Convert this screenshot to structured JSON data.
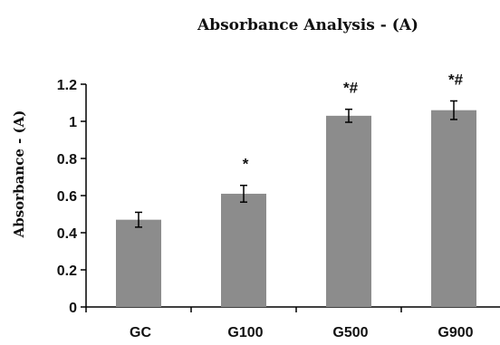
{
  "chart_data": {
    "type": "bar",
    "title": "Absorbance Analysis - (A)",
    "xlabel": "",
    "ylabel": "Absorbance - (A)",
    "categories": [
      "GC",
      "G100",
      "G500",
      "G900"
    ],
    "values": [
      0.47,
      0.61,
      1.03,
      1.06
    ],
    "errors": [
      0.04,
      0.045,
      0.035,
      0.05
    ],
    "annotations": [
      "",
      "*",
      "*#",
      "*#"
    ],
    "ylim": [
      0,
      1.2
    ],
    "yticks": [
      "0",
      "0.2",
      "0.4",
      "0.6",
      "0.8",
      "1",
      "1.2"
    ],
    "bar_color": "#8c8c8c",
    "grid": false,
    "legend": "none"
  }
}
